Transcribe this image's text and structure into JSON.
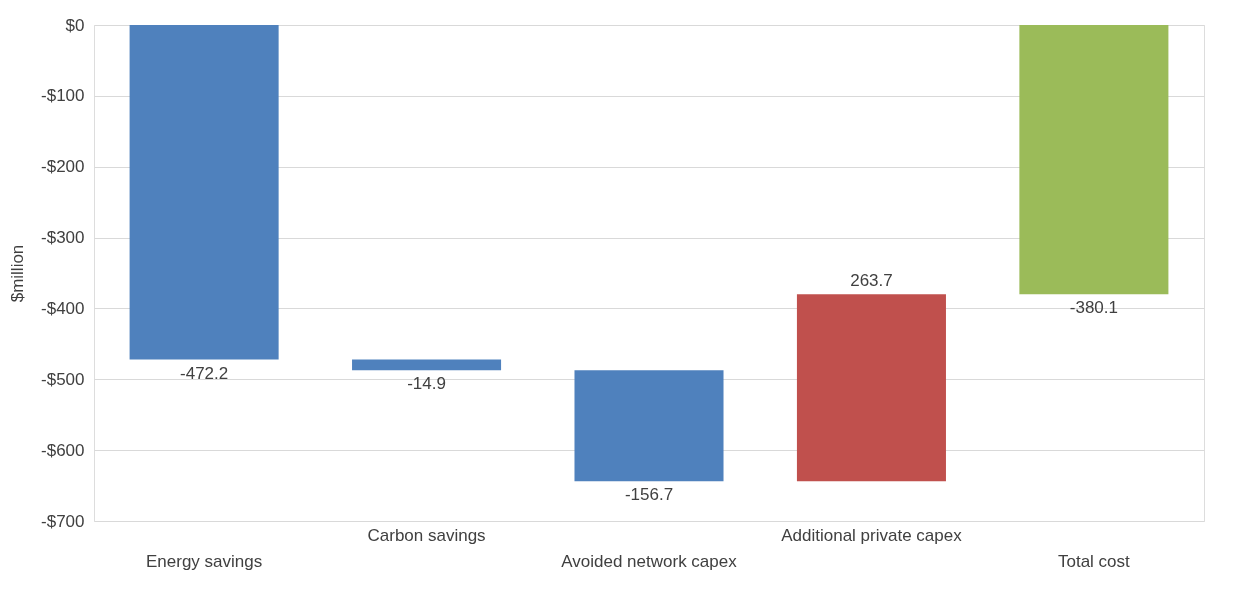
{
  "chart_data": {
    "type": "bar",
    "ylabel": "$million",
    "categories": [
      "Energy savings",
      "Carbon savings",
      "Avoided network capex",
      "Additional private capex",
      "Total cost"
    ],
    "values": [
      -472.2,
      -14.9,
      -156.7,
      263.7,
      -380.1
    ],
    "base": [
      0,
      -472.2,
      -487.1,
      -643.8,
      0
    ],
    "colors": [
      "#4f81bd",
      "#4f81bd",
      "#4f81bd",
      "#c0504d",
      "#9bbb59"
    ],
    "ylim": [
      -700,
      0
    ],
    "yticks": [
      {
        "value": 0,
        "label": "$0"
      },
      {
        "value": -100,
        "label": "-$100"
      },
      {
        "value": -200,
        "label": "-$200"
      },
      {
        "value": -300,
        "label": "-$300"
      },
      {
        "value": -400,
        "label": "-$400"
      },
      {
        "value": -500,
        "label": "-$500"
      },
      {
        "value": -600,
        "label": "-$600"
      },
      {
        "value": -700,
        "label": "-$700"
      }
    ],
    "grid": "y",
    "data_labels": true
  }
}
